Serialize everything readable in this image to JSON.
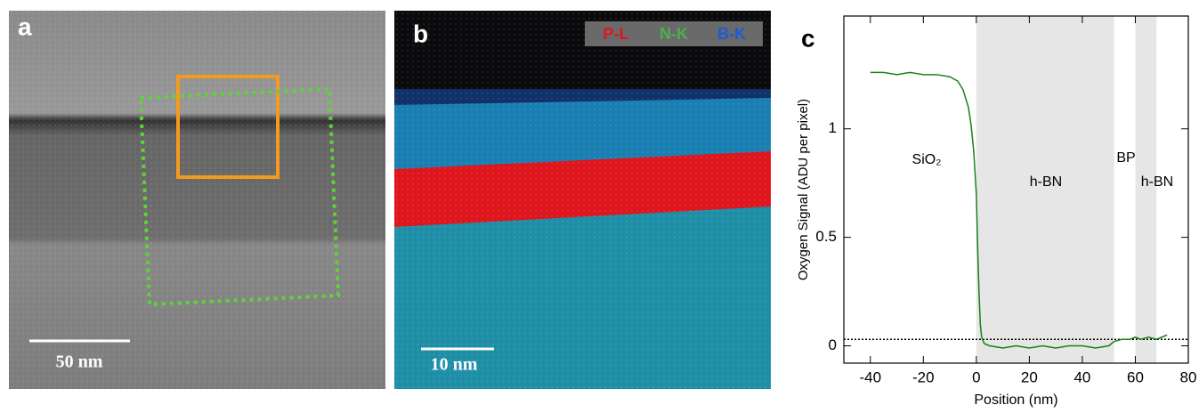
{
  "panels": {
    "a": {
      "label": "a",
      "scale_bar": "50 nm"
    },
    "b": {
      "label": "b",
      "scale_bar": "10 nm",
      "legend": [
        "P-L",
        "N-K",
        "B-K"
      ]
    },
    "c": {
      "label": "c"
    }
  },
  "chart_data": {
    "type": "line",
    "x_label": "Position (nm)",
    "y_label": "Oxygen Signal (ADU per pixel)",
    "x": [
      -40,
      -35,
      -30,
      -25,
      -20,
      -15,
      -10,
      -7,
      -5,
      -3,
      -2,
      -1,
      0,
      0.5,
      1,
      1.5,
      2,
      3,
      5,
      10,
      15,
      20,
      25,
      30,
      35,
      40,
      45,
      50,
      52,
      55,
      58,
      60,
      62,
      65,
      68,
      70,
      72
    ],
    "values": [
      1.26,
      1.26,
      1.25,
      1.26,
      1.25,
      1.25,
      1.24,
      1.22,
      1.18,
      1.1,
      1.02,
      0.9,
      0.7,
      0.45,
      0.25,
      0.1,
      0.04,
      0.01,
      0.0,
      -0.01,
      0.0,
      -0.01,
      0.0,
      -0.01,
      0.0,
      0.0,
      -0.01,
      0.0,
      0.02,
      0.03,
      0.03,
      0.04,
      0.03,
      0.04,
      0.03,
      0.04,
      0.05
    ],
    "color": "#1a7f1a",
    "xlim": [
      -50,
      80
    ],
    "xticks": [
      -40,
      -20,
      0,
      20,
      40,
      60,
      80
    ],
    "ylim": [
      -0.08,
      1.52
    ],
    "yticks": [
      0,
      0.5,
      1
    ],
    "shaded_regions": [
      [
        0,
        52
      ],
      [
        60,
        68
      ]
    ],
    "shade_color": "#e6e6e6",
    "reference_line": 0.03,
    "annotations": [
      "SiO₂",
      "h-BN",
      "BP",
      "h-BN"
    ]
  }
}
